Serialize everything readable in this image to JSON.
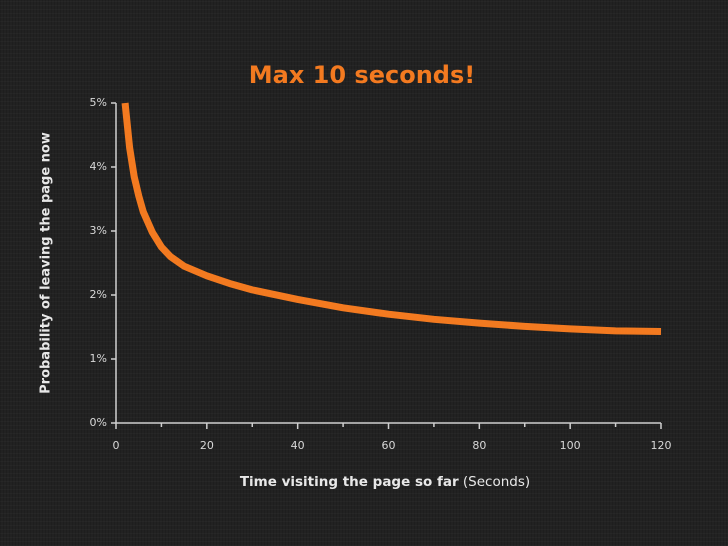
{
  "chart_data": {
    "type": "line",
    "title": "Max 10 seconds!",
    "x_label": "Time visiting the page so far",
    "x_label_unit": "(Seconds)",
    "y_label": "Probability of leaving the page now",
    "x": [
      2,
      3,
      4,
      5,
      6,
      8,
      10,
      12,
      15,
      20,
      25,
      30,
      40,
      50,
      60,
      70,
      80,
      90,
      100,
      110,
      120
    ],
    "series": [
      {
        "color": "#f37a20",
        "values": [
          5.0,
          4.3,
          3.85,
          3.55,
          3.3,
          2.98,
          2.75,
          2.6,
          2.45,
          2.3,
          2.18,
          2.08,
          1.93,
          1.8,
          1.7,
          1.62,
          1.56,
          1.51,
          1.47,
          1.44,
          1.43
        ]
      }
    ],
    "xlim": [
      0,
      120
    ],
    "xticks": [
      0,
      20,
      40,
      60,
      80,
      100,
      120
    ],
    "xticks_minor": [
      10,
      30,
      50,
      70,
      90,
      110
    ],
    "ylim": [
      0,
      5
    ],
    "yticks": [
      {
        "value": 0,
        "label": "0%"
      },
      {
        "value": 1,
        "label": "1%"
      },
      {
        "value": 2,
        "label": "2%"
      },
      {
        "value": 3,
        "label": "3%"
      },
      {
        "value": 4,
        "label": "4%"
      },
      {
        "value": 5,
        "label": "5%"
      }
    ],
    "grid": false
  }
}
